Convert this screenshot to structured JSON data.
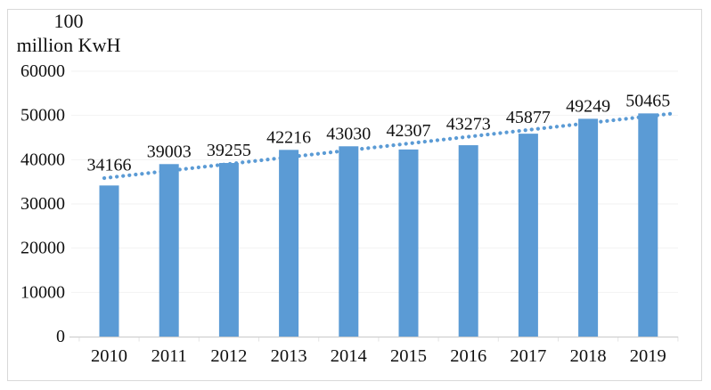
{
  "figure": {
    "unit_label_line1": "100",
    "unit_label_line2": "million KwH"
  },
  "chart_data": {
    "type": "bar",
    "title": "",
    "ylabel": "100 million KwH",
    "xlabel": "",
    "categories": [
      "2010",
      "2011",
      "2012",
      "2013",
      "2014",
      "2015",
      "2016",
      "2017",
      "2018",
      "2019"
    ],
    "values": [
      34166,
      39003,
      39255,
      42216,
      43030,
      42307,
      43273,
      45877,
      49249,
      50465
    ],
    "ylim": [
      0,
      60000
    ],
    "ytick_step": 10000,
    "ytick_labels": [
      "0",
      "10000",
      "20000",
      "30000",
      "40000",
      "50000",
      "60000"
    ],
    "grid": "horizontal-faint",
    "legend": "none",
    "data_labels_visible": true,
    "trendline": {
      "type": "linear",
      "style": "dotted"
    },
    "colors": {
      "bar": "#5B9BD5",
      "trendline": "#5B9BD5",
      "gridline": "#F2F2F2",
      "axis_line": "#D0D0D0",
      "category_tick": "#E4E4E4",
      "text": "#111111",
      "border": "#D9D9D9"
    }
  }
}
